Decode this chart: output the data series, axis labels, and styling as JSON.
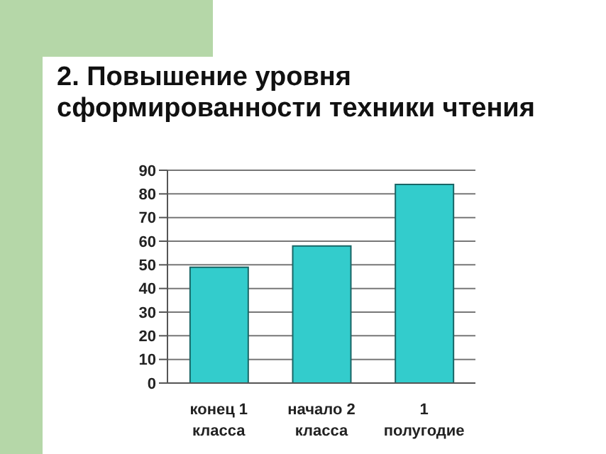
{
  "chart_data": {
    "type": "bar",
    "title": "2. Повышение уровня сформированности техники чтения",
    "categories": [
      "конец 1 класса",
      "начало 2 класса",
      "1 полугодие"
    ],
    "values": [
      49,
      58,
      84
    ],
    "color": "#33cccc",
    "ylim": [
      0,
      90
    ],
    "yticks": [
      0,
      10,
      20,
      30,
      40,
      50,
      60,
      70,
      80,
      90
    ],
    "grid": "y",
    "legend": false
  }
}
